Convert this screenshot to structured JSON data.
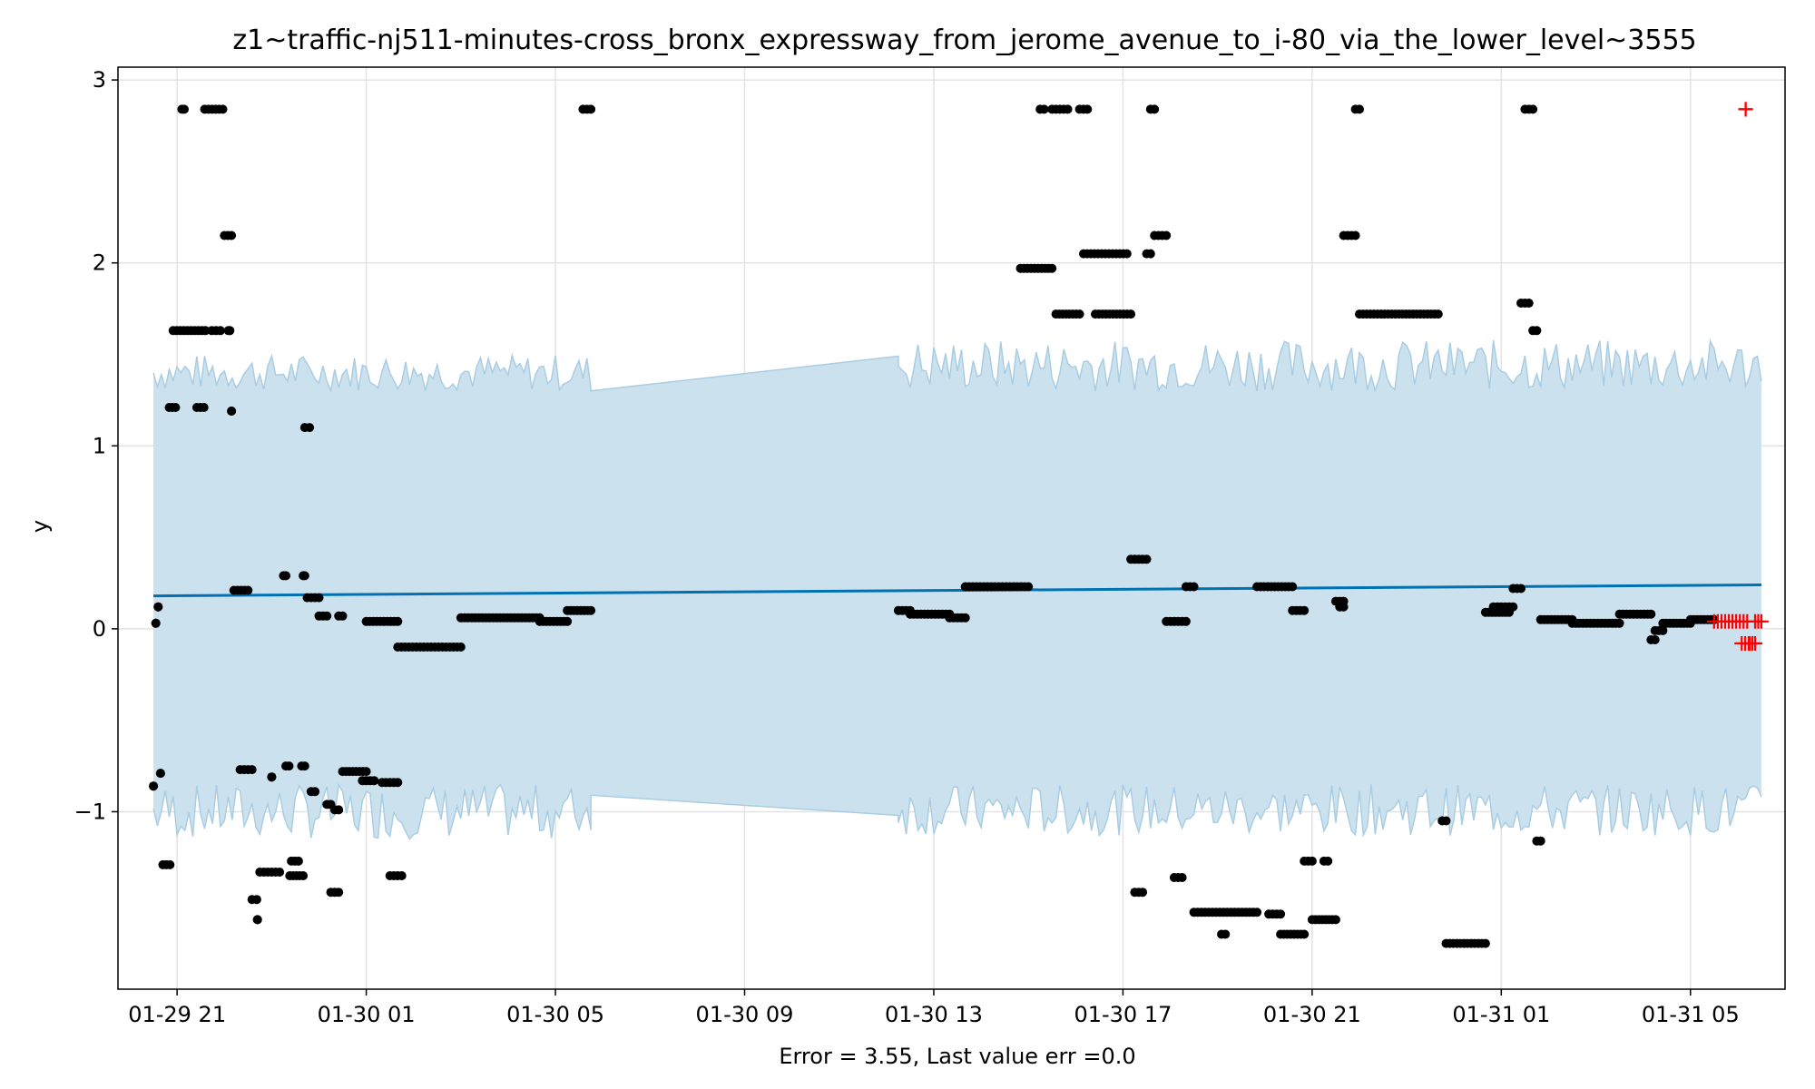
{
  "chart_data": {
    "type": "scatter",
    "title": "z1~traffic-nj511-minutes-cross_bronx_expressway_from_jerome_avenue_to_i-80_via_the_lower_level~3555",
    "xlabel": "Error = 3.55, Last value err =0.0",
    "ylabel": "y",
    "x_axis": {
      "type": "time",
      "range": [
        "2024-01-29T19:45",
        "2024-01-31T07:00"
      ],
      "ticks": [
        {
          "t": "2024-01-29T21:00",
          "label": "01-29 21"
        },
        {
          "t": "2024-01-30T01:00",
          "label": "01-30 01"
        },
        {
          "t": "2024-01-30T05:00",
          "label": "01-30 05"
        },
        {
          "t": "2024-01-30T09:00",
          "label": "01-30 09"
        },
        {
          "t": "2024-01-30T13:00",
          "label": "01-30 13"
        },
        {
          "t": "2024-01-30T17:00",
          "label": "01-30 17"
        },
        {
          "t": "2024-01-30T21:00",
          "label": "01-30 21"
        },
        {
          "t": "2024-01-31T01:00",
          "label": "01-31 01"
        },
        {
          "t": "2024-01-31T05:00",
          "label": "01-31 05"
        }
      ]
    },
    "y_axis": {
      "range": [
        -1.97,
        3.07
      ],
      "ticks": [
        {
          "v": -1,
          "label": "−1"
        },
        {
          "v": 0,
          "label": "0"
        },
        {
          "v": 1,
          "label": "1"
        },
        {
          "v": 2,
          "label": "2"
        },
        {
          "v": 3,
          "label": "3"
        }
      ]
    },
    "grid": true,
    "colors": {
      "observed": "#000000",
      "forecast_line": "#0072B2",
      "band_fill": "#cce1ee",
      "band_edge": "#a9cde3",
      "anomaly": "#ff0000",
      "grid": "#e3e3e3"
    },
    "trend_line": {
      "start": [
        "2024-01-29T20:30",
        0.18
      ],
      "end": [
        "2024-01-31T06:30",
        0.24
      ]
    },
    "band_segments": [
      {
        "from": "2024-01-29T20:30",
        "to": "2024-01-30T05:45",
        "upper": [
          1.3,
          1.5
        ],
        "lower": [
          -1.15,
          -0.85
        ]
      },
      {
        "from": "2024-01-30T05:45",
        "to": "2024-01-30T12:15",
        "upper_line": [
          1.3,
          1.49
        ],
        "lower_line": [
          -0.91,
          -1.02
        ]
      },
      {
        "from": "2024-01-30T12:15",
        "to": "2024-01-31T06:30",
        "upper": [
          1.3,
          1.58
        ],
        "lower": [
          -1.13,
          -0.85
        ]
      }
    ],
    "observed_segments": [
      [
        "2024-01-29T20:30",
        "2024-01-29T20:30",
        -0.86
      ],
      [
        "2024-01-29T20:33",
        "2024-01-29T20:33",
        0.03
      ],
      [
        "2024-01-29T20:36",
        "2024-01-29T20:36",
        0.12
      ],
      [
        "2024-01-29T20:39",
        "2024-01-29T20:39",
        -0.79
      ],
      [
        "2024-01-29T20:42",
        "2024-01-29T20:51",
        -1.29
      ],
      [
        "2024-01-29T20:50",
        "2024-01-29T20:58",
        1.21
      ],
      [
        "2024-01-29T20:55",
        "2024-01-29T21:36",
        1.63
      ],
      [
        "2024-01-29T21:06",
        "2024-01-29T21:09",
        2.84
      ],
      [
        "2024-01-29T21:25",
        "2024-01-29T21:34",
        1.21
      ],
      [
        "2024-01-29T21:35",
        "2024-01-29T21:58",
        2.84
      ],
      [
        "2024-01-29T21:44",
        "2024-01-29T21:55",
        1.63
      ],
      [
        "2024-01-29T22:00",
        "2024-01-29T22:09",
        2.15
      ],
      [
        "2024-01-29T22:05",
        "2024-01-29T22:07",
        1.63
      ],
      [
        "2024-01-29T22:09",
        "2024-01-29T22:09",
        1.19
      ],
      [
        "2024-01-29T22:12",
        "2024-01-29T22:30",
        0.21
      ],
      [
        "2024-01-29T22:20",
        "2024-01-29T22:35",
        -0.77
      ],
      [
        "2024-01-29T22:35",
        "2024-01-29T22:41",
        -1.48
      ],
      [
        "2024-01-29T22:42",
        "2024-01-29T22:42",
        -1.59
      ],
      [
        "2024-01-29T22:45",
        "2024-01-29T23:10",
        -1.33
      ],
      [
        "2024-01-29T23:00",
        "2024-01-29T23:00",
        -0.81
      ],
      [
        "2024-01-29T23:15",
        "2024-01-29T23:18",
        0.29
      ],
      [
        "2024-01-29T23:18",
        "2024-01-29T23:22",
        -0.75
      ],
      [
        "2024-01-29T23:23",
        "2024-01-29T23:40",
        -1.35
      ],
      [
        "2024-01-29T23:25",
        "2024-01-29T23:34",
        -1.27
      ],
      [
        "2024-01-29T23:38",
        "2024-01-29T23:42",
        -0.75
      ],
      [
        "2024-01-29T23:40",
        "2024-01-29T23:42",
        0.29
      ],
      [
        "2024-01-29T23:42",
        "2024-01-29T23:48",
        1.1
      ],
      [
        "2024-01-29T23:45",
        "2024-01-29T24:00",
        0.17
      ],
      [
        "2024-01-29T23:50",
        "2024-01-29T23:55",
        -0.89
      ],
      [
        "2024-01-30T00:00",
        "2024-01-30T00:10",
        0.07
      ],
      [
        "2024-01-30T00:10",
        "2024-01-30T00:15",
        -0.96
      ],
      [
        "2024-01-30T00:15",
        "2024-01-30T00:25",
        -1.44
      ],
      [
        "2024-01-30T00:20",
        "2024-01-30T00:25",
        -0.99
      ],
      [
        "2024-01-30T00:25",
        "2024-01-30T00:30",
        0.07
      ],
      [
        "2024-01-30T00:30",
        "2024-01-30T01:00",
        -0.78
      ],
      [
        "2024-01-30T00:55",
        "2024-01-30T01:10",
        -0.83
      ],
      [
        "2024-01-30T01:00",
        "2024-01-30T01:40",
        0.04
      ],
      [
        "2024-01-30T01:20",
        "2024-01-30T01:40",
        -0.84
      ],
      [
        "2024-01-30T01:30",
        "2024-01-30T01:45",
        -1.35
      ],
      [
        "2024-01-30T01:40",
        "2024-01-30T03:00",
        -0.1
      ],
      [
        "2024-01-30T03:00",
        "2024-01-30T04:40",
        0.06
      ],
      [
        "2024-01-30T04:40",
        "2024-01-30T05:15",
        0.04
      ],
      [
        "2024-01-30T05:15",
        "2024-01-30T05:45",
        0.1
      ],
      [
        "2024-01-30T05:35",
        "2024-01-30T05:45",
        2.84
      ],
      [
        "2024-01-30T12:15",
        "2024-01-30T12:30",
        0.1
      ],
      [
        "2024-01-30T12:30",
        "2024-01-30T13:20",
        0.08
      ],
      [
        "2024-01-30T13:20",
        "2024-01-30T13:40",
        0.06
      ],
      [
        "2024-01-30T13:40",
        "2024-01-30T15:00",
        0.23
      ],
      [
        "2024-01-30T14:50",
        "2024-01-30T15:30",
        1.97
      ],
      [
        "2024-01-30T15:15",
        "2024-01-30T15:20",
        2.84
      ],
      [
        "2024-01-30T15:30",
        "2024-01-30T15:50",
        2.84
      ],
      [
        "2024-01-30T15:35",
        "2024-01-30T16:05",
        1.72
      ],
      [
        "2024-01-30T16:05",
        "2024-01-30T16:15",
        2.84
      ],
      [
        "2024-01-30T16:10",
        "2024-01-30T17:05",
        2.05
      ],
      [
        "2024-01-30T16:25",
        "2024-01-30T17:10",
        1.72
      ],
      [
        "2024-01-30T17:10",
        "2024-01-30T17:30",
        0.38
      ],
      [
        "2024-01-30T17:15",
        "2024-01-30T17:25",
        -1.44
      ],
      [
        "2024-01-30T17:30",
        "2024-01-30T17:35",
        2.05
      ],
      [
        "2024-01-30T17:35",
        "2024-01-30T17:40",
        2.84
      ],
      [
        "2024-01-30T17:40",
        "2024-01-30T17:55",
        2.15
      ],
      [
        "2024-01-30T17:55",
        "2024-01-30T18:20",
        0.04
      ],
      [
        "2024-01-30T18:05",
        "2024-01-30T18:15",
        -1.36
      ],
      [
        "2024-01-30T18:20",
        "2024-01-30T18:30",
        0.23
      ],
      [
        "2024-01-30T18:30",
        "2024-01-30T19:50",
        -1.55
      ],
      [
        "2024-01-30T19:05",
        "2024-01-30T19:10",
        -1.67
      ],
      [
        "2024-01-30T19:50",
        "2024-01-30T20:35",
        0.23
      ],
      [
        "2024-01-30T20:05",
        "2024-01-30T20:20",
        -1.56
      ],
      [
        "2024-01-30T20:20",
        "2024-01-30T20:50",
        -1.67
      ],
      [
        "2024-01-30T20:35",
        "2024-01-30T20:50",
        0.1
      ],
      [
        "2024-01-30T20:50",
        "2024-01-30T21:00",
        -1.27
      ],
      [
        "2024-01-30T21:00",
        "2024-01-30T21:30",
        -1.59
      ],
      [
        "2024-01-30T21:15",
        "2024-01-30T21:20",
        -1.27
      ],
      [
        "2024-01-30T21:30",
        "2024-01-30T21:40",
        0.15
      ],
      [
        "2024-01-30T21:35",
        "2024-01-30T21:40",
        0.12
      ],
      [
        "2024-01-30T21:40",
        "2024-01-30T21:55",
        2.15
      ],
      [
        "2024-01-30T21:55",
        "2024-01-30T22:00",
        2.84
      ],
      [
        "2024-01-30T22:00",
        "2024-01-30T23:40",
        1.72
      ],
      [
        "2024-01-30T23:45",
        "2024-01-30T23:50",
        -1.05
      ],
      [
        "2024-01-30T23:50",
        "2024-01-31T00:40",
        -1.72
      ],
      [
        "2024-01-31T00:40",
        "2024-01-31T01:10",
        0.09
      ],
      [
        "2024-01-31T00:50",
        "2024-01-31T01:15",
        0.12
      ],
      [
        "2024-01-31T01:15",
        "2024-01-31T01:25",
        0.22
      ],
      [
        "2024-01-31T01:25",
        "2024-01-31T01:35",
        1.78
      ],
      [
        "2024-01-31T01:30",
        "2024-01-31T01:40",
        2.84
      ],
      [
        "2024-01-31T01:40",
        "2024-01-31T01:45",
        1.63
      ],
      [
        "2024-01-31T01:45",
        "2024-01-31T01:50",
        -1.16
      ],
      [
        "2024-01-31T01:50",
        "2024-01-31T02:30",
        0.05
      ],
      [
        "2024-01-31T02:30",
        "2024-01-31T03:30",
        0.03
      ],
      [
        "2024-01-31T03:30",
        "2024-01-31T04:10",
        0.08
      ],
      [
        "2024-01-31T04:10",
        "2024-01-31T04:15",
        -0.06
      ],
      [
        "2024-01-31T04:15",
        "2024-01-31T04:25",
        -0.01
      ],
      [
        "2024-01-31T04:25",
        "2024-01-31T05:00",
        0.03
      ],
      [
        "2024-01-31T05:00",
        "2024-01-31T05:30",
        0.05
      ]
    ],
    "anomaly_segments": [
      [
        "2024-01-31T05:30",
        "2024-01-31T06:12",
        0.04
      ],
      [
        "2024-01-31T06:05",
        "2024-01-31T06:14",
        -0.08
      ],
      [
        "2024-01-31T06:15",
        "2024-01-31T06:22",
        -0.08
      ],
      [
        "2024-01-31T06:22",
        "2024-01-31T06:30",
        0.04
      ],
      [
        "2024-01-31T06:10",
        "2024-01-31T06:10",
        2.84
      ]
    ]
  }
}
